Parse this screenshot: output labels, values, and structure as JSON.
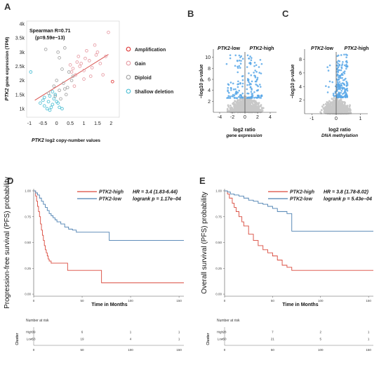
{
  "panels": {
    "A": "A",
    "B": "B",
    "C": "C",
    "D": "D",
    "E": "E"
  },
  "colors": {
    "red": "#d9534f",
    "blue": "#5b9bd5",
    "amplification": "#e0403f",
    "gain": "#e8a0a8",
    "diploid": "#a8a8a8",
    "shallow": "#56c2d6",
    "volcano_hit": "#5aa8e8",
    "volcano_bg": "#c8c8c8",
    "km_high": "#d9483b",
    "km_low": "#4a7fb0"
  },
  "chart_data": [
    {
      "id": "A",
      "type": "scatter",
      "xlabel_italic": "PTK2",
      "xlabel_rest": " log2 copy-number values",
      "ylabel_italic": "PTK2",
      "ylabel_rest": " gene expression (TPM)",
      "xlim": [
        -1.1,
        2.3
      ],
      "ylim": [
        700,
        4100
      ],
      "xticks": [
        -1,
        -0.5,
        0,
        0.5,
        1,
        1.5,
        2
      ],
      "xtick_labels": [
        "-1",
        "-0.5",
        "0",
        "0.5",
        "1",
        "1.5",
        "2"
      ],
      "yticks": [
        1000,
        1500,
        2000,
        2500,
        3000,
        3500,
        4000
      ],
      "ytick_labels": [
        "1k",
        "1.5k",
        "2k",
        "2.5k",
        "3k",
        "3.5k",
        "4k"
      ],
      "annotation_line1": "Spearman R=0.71",
      "annotation_line2": "(p=9.59e−13)",
      "legend": [
        "Amplification",
        "Gain",
        "Diploid",
        "Shallow deletion"
      ],
      "trend": {
        "x": [
          -0.8,
          1.9
        ],
        "y": [
          1300,
          2920
        ]
      },
      "series": [
        {
          "name": "Amplification",
          "points": [
            [
              2.05,
              1960
            ]
          ]
        },
        {
          "name": "Gain",
          "points": [
            [
              0.5,
              2550
            ],
            [
              0.55,
              2300
            ],
            [
              0.6,
              2420
            ],
            [
              0.7,
              2200
            ],
            [
              0.75,
              2650
            ],
            [
              0.8,
              2850
            ],
            [
              0.85,
              2500
            ],
            [
              0.9,
              2600
            ],
            [
              1.0,
              2350
            ],
            [
              1.05,
              2780
            ],
            [
              1.1,
              3050
            ],
            [
              1.2,
              2700
            ],
            [
              1.25,
              2150
            ],
            [
              1.3,
              2450
            ],
            [
              1.4,
              3250
            ],
            [
              1.5,
              3000
            ],
            [
              1.6,
              2600
            ],
            [
              1.7,
              2200
            ],
            [
              1.8,
              2850
            ],
            [
              1.9,
              3700
            ],
            [
              1.45,
              2900
            ],
            [
              1.0,
              2050
            ],
            [
              0.65,
              1800
            ]
          ]
        },
        {
          "name": "Diploid",
          "points": [
            [
              -0.4,
              3100
            ],
            [
              0.05,
              3000
            ],
            [
              0.1,
              2800
            ],
            [
              0.3,
              3150
            ],
            [
              0.2,
              2400
            ],
            [
              0.45,
              2300
            ],
            [
              0.0,
              2000
            ],
            [
              -0.1,
              1800
            ],
            [
              0.1,
              1650
            ],
            [
              0.25,
              1900
            ],
            [
              0.35,
              1500
            ],
            [
              -0.3,
              1550
            ],
            [
              0.15,
              1350
            ],
            [
              0.55,
              2000
            ],
            [
              0.4,
              1750
            ],
            [
              -0.05,
              1450
            ],
            [
              0.6,
              2150
            ],
            [
              0.3,
              1700
            ]
          ]
        },
        {
          "name": "Shallow deletion",
          "points": [
            [
              -0.95,
              2300
            ],
            [
              -0.5,
              1300
            ],
            [
              -0.45,
              1100
            ],
            [
              -0.35,
              1000
            ],
            [
              -0.3,
              1250
            ],
            [
              -0.25,
              1450
            ],
            [
              -0.2,
              1050
            ],
            [
              -0.15,
              1150
            ],
            [
              -0.1,
              1350
            ],
            [
              -0.05,
              1500
            ],
            [
              0.0,
              1250
            ],
            [
              0.05,
              1200
            ],
            [
              0.1,
              1050
            ],
            [
              -0.25,
              950
            ],
            [
              -0.45,
              1400
            ],
            [
              0.2,
              1000
            ],
            [
              -0.15,
              1600
            ],
            [
              -0.6,
              1200
            ]
          ]
        }
      ]
    },
    {
      "id": "B",
      "type": "scatter",
      "left_label_italic": "PTK2",
      "left_label_rest": "-low",
      "right_label_italic": "PTK2",
      "right_label_rest": "-high",
      "xlabel": "log2 ratio",
      "xsublabel": "gene expression",
      "ylabel": "−log10 p-value",
      "xlim": [
        -5,
        5
      ],
      "ylim": [
        0,
        11.5
      ],
      "xticks": [
        -4,
        -2,
        0,
        2,
        4
      ],
      "xtick_labels": [
        "-4",
        "-2",
        "0",
        "2",
        "4"
      ],
      "yticks": [
        2,
        4,
        6,
        8,
        10
      ],
      "ytick_labels": [
        "2",
        "4",
        "6",
        "8",
        "10"
      ]
    },
    {
      "id": "C",
      "type": "scatter",
      "left_label_italic": "PTK2",
      "left_label_rest": "-low",
      "right_label_italic": "PTK2",
      "right_label_rest": "-high",
      "xlabel": "log2 ratio",
      "xsublabel": "DNA methylation",
      "ylabel": "−log10 p-value",
      "xlim": [
        -1.3,
        1.3
      ],
      "ylim": [
        0,
        9.5
      ],
      "xticks": [
        -1,
        0,
        1
      ],
      "xtick_labels": [
        "-1",
        "0",
        "1"
      ],
      "yticks": [
        2,
        4,
        6,
        8
      ],
      "ytick_labels": [
        "2",
        "4",
        "6",
        "8"
      ]
    },
    {
      "id": "D",
      "type": "line",
      "ylabel": "Progression-free survival (PFS) probability",
      "xlabel": "Time in Months",
      "xlim": [
        0,
        155
      ],
      "ylim": [
        -0.02,
        1.02
      ],
      "xticks": [
        0,
        50,
        100,
        150
      ],
      "xtick_labels": [
        "0",
        "50",
        "100",
        "150"
      ],
      "yticks": [
        0,
        0.25,
        0.5,
        0.75,
        1
      ],
      "ytick_labels": [
        "0.00",
        "0.25",
        "0.50",
        "0.75",
        "1.00"
      ],
      "legend": [
        "PTK2-high",
        "PTK2-low"
      ],
      "stat1": "HR = 3.4 (1.83-6.44)",
      "stat2": "logrank p = 1.17e−04",
      "series": [
        {
          "name": "PTK2-high",
          "x": [
            0,
            2,
            3,
            4,
            5,
            6,
            7,
            8,
            9,
            10,
            11,
            12,
            13,
            14,
            15,
            16,
            18,
            20,
            25,
            35,
            70,
            155
          ],
          "y": [
            1,
            0.95,
            0.9,
            0.85,
            0.8,
            0.75,
            0.68,
            0.62,
            0.57,
            0.52,
            0.47,
            0.43,
            0.4,
            0.37,
            0.34,
            0.32,
            0.3,
            0.3,
            0.3,
            0.23,
            0.11,
            0.11
          ]
        },
        {
          "name": "PTK2-low",
          "x": [
            0,
            2,
            4,
            6,
            8,
            10,
            12,
            14,
            16,
            18,
            20,
            22,
            24,
            28,
            32,
            36,
            40,
            44,
            50,
            78,
            155
          ],
          "y": [
            1,
            0.98,
            0.96,
            0.93,
            0.9,
            0.87,
            0.84,
            0.81,
            0.78,
            0.76,
            0.74,
            0.72,
            0.7,
            0.68,
            0.65,
            0.63,
            0.62,
            0.6,
            0.6,
            0.52,
            0.52
          ]
        }
      ],
      "risk": {
        "title": "Number at risk",
        "ylabel": "Cluster",
        "rows": [
          {
            "name": "High",
            "values": [
              "39",
              "6",
              "1",
              "1"
            ]
          },
          {
            "name": "Low",
            "values": [
              "53",
              "19",
              "4",
              "1"
            ]
          }
        ],
        "xticks": [
          "0",
          "50",
          "100",
          "150"
        ]
      }
    },
    {
      "id": "E",
      "type": "line",
      "ylabel": "Overall survival (PFS) probability",
      "xlabel": "Time in Months",
      "xlim": [
        0,
        155
      ],
      "ylim": [
        -0.02,
        1.02
      ],
      "xticks": [
        0,
        50,
        100,
        150
      ],
      "xtick_labels": [
        "0",
        "50",
        "100",
        "150"
      ],
      "yticks": [
        0,
        0.25,
        0.5,
        0.75,
        1
      ],
      "ytick_labels": [
        "0.00",
        "0.25",
        "0.50",
        "0.75",
        "1.00"
      ],
      "legend": [
        "PTK2-high",
        "PTK2-low"
      ],
      "stat1": "HR = 3.8 (1.78-8.02)",
      "stat2": "logrank p = 5.43e−04",
      "series": [
        {
          "name": "PTK2-high",
          "x": [
            0,
            3,
            5,
            8,
            10,
            12,
            15,
            18,
            20,
            25,
            30,
            35,
            40,
            45,
            50,
            55,
            60,
            65,
            70,
            155
          ],
          "y": [
            1,
            0.97,
            0.93,
            0.88,
            0.84,
            0.8,
            0.75,
            0.7,
            0.66,
            0.58,
            0.52,
            0.47,
            0.43,
            0.4,
            0.37,
            0.33,
            0.28,
            0.26,
            0.23,
            0.23
          ]
        },
        {
          "name": "PTK2-low",
          "x": [
            0,
            3,
            6,
            10,
            15,
            20,
            25,
            30,
            35,
            40,
            45,
            50,
            55,
            60,
            65,
            70,
            155
          ],
          "y": [
            1,
            0.99,
            0.97,
            0.96,
            0.95,
            0.93,
            0.91,
            0.9,
            0.88,
            0.87,
            0.85,
            0.83,
            0.8,
            0.8,
            0.78,
            0.61,
            0.61
          ]
        }
      ],
      "risk": {
        "title": "Number at risk",
        "ylabel": "Cluster",
        "rows": [
          {
            "name": "High",
            "values": [
              "28",
              "7",
              "2",
              "1"
            ]
          },
          {
            "name": "Low",
            "values": [
              "50",
              "21",
              "5",
              "1"
            ]
          }
        ],
        "xticks": [
          "0",
          "50",
          "100",
          "150"
        ]
      }
    }
  ]
}
